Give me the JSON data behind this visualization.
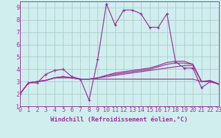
{
  "background_color": "#d0eeee",
  "grid_color": "#aacccc",
  "line_color": "#993399",
  "xlabel": "Windchill (Refroidissement éolien,°C)",
  "xlim": [
    0,
    23
  ],
  "ylim": [
    1,
    9.5
  ],
  "yticks": [
    1,
    2,
    3,
    4,
    5,
    6,
    7,
    8,
    9
  ],
  "xticks": [
    0,
    1,
    2,
    3,
    4,
    5,
    6,
    7,
    8,
    9,
    10,
    11,
    12,
    13,
    14,
    15,
    16,
    17,
    18,
    19,
    20,
    21,
    22,
    23
  ],
  "xlabel_fontsize": 6.5,
  "tick_fontsize": 6,
  "series": [
    {
      "y": [
        2.0,
        2.9,
        2.9,
        3.6,
        3.9,
        4.0,
        3.4,
        3.2,
        1.5,
        4.8,
        9.3,
        7.6,
        8.8,
        8.8,
        8.5,
        7.4,
        7.4,
        8.5,
        4.6,
        4.1,
        4.1,
        2.5,
        3.0,
        2.8
      ],
      "show_markers": true
    },
    {
      "y": [
        2.0,
        2.9,
        3.0,
        3.1,
        3.3,
        3.3,
        3.3,
        3.2,
        3.2,
        3.2,
        3.2,
        3.2,
        3.2,
        3.2,
        3.2,
        3.2,
        3.2,
        3.2,
        3.2,
        3.2,
        3.2,
        3.0,
        3.0,
        2.8
      ],
      "show_markers": false
    },
    {
      "y": [
        2.0,
        2.9,
        3.0,
        3.1,
        3.3,
        3.4,
        3.3,
        3.2,
        3.2,
        3.3,
        3.4,
        3.5,
        3.6,
        3.7,
        3.8,
        3.9,
        4.0,
        4.1,
        4.2,
        4.3,
        4.3,
        3.0,
        3.0,
        2.8
      ],
      "show_markers": false
    },
    {
      "y": [
        2.0,
        2.9,
        3.0,
        3.1,
        3.3,
        3.4,
        3.3,
        3.2,
        3.2,
        3.3,
        3.5,
        3.6,
        3.7,
        3.8,
        3.9,
        4.0,
        4.2,
        4.4,
        4.5,
        4.5,
        4.4,
        3.0,
        3.0,
        2.8
      ],
      "show_markers": false
    },
    {
      "y": [
        2.0,
        2.9,
        3.0,
        3.1,
        3.3,
        3.4,
        3.3,
        3.2,
        3.2,
        3.3,
        3.5,
        3.7,
        3.8,
        3.9,
        4.0,
        4.1,
        4.3,
        4.55,
        4.65,
        4.65,
        4.4,
        3.0,
        3.1,
        2.8
      ],
      "show_markers": false
    }
  ]
}
